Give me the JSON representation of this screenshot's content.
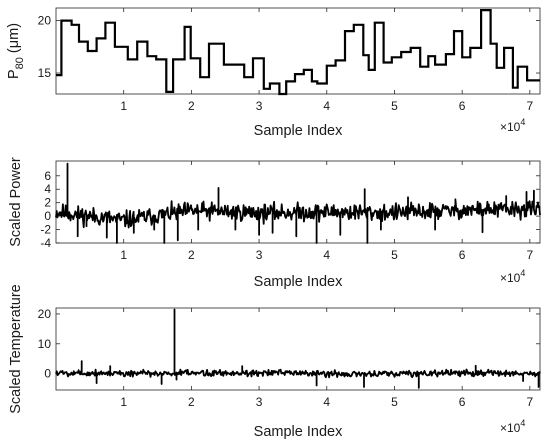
{
  "chart_data": [
    {
      "type": "line",
      "ylabel": "P80 (μm)",
      "ylabel_parts": {
        "main": "P",
        "sub": "80",
        "rest": " (μm)"
      },
      "xlabel": "Sample Index",
      "x_multiplier": "×10",
      "x_multiplier_exp": "4",
      "xlim": [
        0,
        71500
      ],
      "ylim": [
        13,
        21.2
      ],
      "xticks": [
        10000,
        20000,
        30000,
        40000,
        50000,
        60000,
        70000
      ],
      "xtick_labels": [
        "1",
        "2",
        "3",
        "4",
        "5",
        "6",
        "7"
      ],
      "yticks": [
        15,
        20
      ],
      "ytick_labels": [
        "15",
        "20"
      ],
      "step": true,
      "x": [
        0,
        800,
        2300,
        3400,
        4700,
        6000,
        7300,
        8700,
        10600,
        12000,
        13500,
        14800,
        16300,
        17300,
        19000,
        19900,
        21300,
        22600,
        24800,
        26300,
        27800,
        29100,
        30700,
        31600,
        33000,
        34000,
        35300,
        36600,
        37800,
        38600,
        40000,
        41300,
        42700,
        44000,
        45400,
        46200,
        47100,
        48400,
        49600,
        51000,
        52400,
        53800,
        55000,
        56000,
        57600,
        58800,
        60000,
        61200,
        62800,
        64200,
        65100,
        66200,
        67500,
        68200,
        69600,
        71000
      ],
      "y": [
        14.8,
        20.0,
        19.6,
        18.0,
        17.1,
        18.3,
        19.8,
        17.5,
        16.3,
        18.0,
        16.6,
        16.3,
        13.2,
        16.3,
        19.4,
        16.4,
        14.6,
        17.8,
        15.8,
        15.8,
        14.6,
        16.4,
        13.5,
        14.0,
        13.0,
        14.2,
        14.9,
        15.3,
        14.2,
        14.0,
        15.7,
        16.2,
        19.0,
        19.6,
        16.7,
        15.3,
        19.8,
        16.0,
        16.5,
        17.0,
        17.4,
        15.6,
        16.6,
        15.8,
        16.8,
        19.0,
        16.5,
        17.4,
        21.0,
        17.8,
        15.5,
        17.4,
        13.6,
        15.6,
        14.3,
        14.3
      ]
    },
    {
      "type": "line",
      "ylabel": "Scaled Power",
      "xlabel": "Sample Index",
      "x_multiplier": "×10",
      "x_multiplier_exp": "4",
      "xlim": [
        0,
        71500
      ],
      "ylim": [
        -4,
        8.2
      ],
      "xticks": [
        10000,
        20000,
        30000,
        40000,
        50000,
        60000,
        70000
      ],
      "xtick_labels": [
        "1",
        "2",
        "3",
        "4",
        "5",
        "6",
        "7"
      ],
      "yticks": [
        -4,
        -2,
        0,
        2,
        4,
        6
      ],
      "ytick_labels": [
        "-4",
        "-2",
        "0",
        "2",
        "4",
        "6"
      ],
      "signal": {
        "baseline": [
          [
            0,
            0.6
          ],
          [
            10000,
            -0.6
          ],
          [
            20000,
            0.8
          ],
          [
            30000,
            0.5
          ],
          [
            40000,
            0.6
          ],
          [
            50000,
            0.5
          ],
          [
            60000,
            0.9
          ],
          [
            71500,
            1.0
          ]
        ],
        "noise": 0.8,
        "n_points": 700,
        "seed": 11,
        "spikes": [
          {
            "x": 1700,
            "y": 7.8
          },
          {
            "x": 3200,
            "y": -3.0
          },
          {
            "x": 4500,
            "y": -1.5
          },
          {
            "x": 7500,
            "y": -3.2
          },
          {
            "x": 9000,
            "y": -4.0
          },
          {
            "x": 11500,
            "y": -2.5
          },
          {
            "x": 14500,
            "y": -2.0
          },
          {
            "x": 16000,
            "y": -4.0
          },
          {
            "x": 18000,
            "y": -3.6
          },
          {
            "x": 21000,
            "y": -2.0
          },
          {
            "x": 24000,
            "y": 4.2
          },
          {
            "x": 26500,
            "y": -2.0
          },
          {
            "x": 30000,
            "y": -2.8
          },
          {
            "x": 32000,
            "y": -2.5
          },
          {
            "x": 35500,
            "y": -3.0
          },
          {
            "x": 38500,
            "y": -4.0
          },
          {
            "x": 42000,
            "y": -2.8
          },
          {
            "x": 45600,
            "y": 4.0
          },
          {
            "x": 46000,
            "y": -4.0
          },
          {
            "x": 48000,
            "y": -2.0
          },
          {
            "x": 52000,
            "y": 2.8
          },
          {
            "x": 56000,
            "y": -2.0
          },
          {
            "x": 59000,
            "y": 2.5
          },
          {
            "x": 63000,
            "y": -2.4
          },
          {
            "x": 66500,
            "y": 3.0
          },
          {
            "x": 69500,
            "y": 3.6
          },
          {
            "x": 70600,
            "y": 3.8
          }
        ]
      }
    },
    {
      "type": "line",
      "ylabel": "Scaled Temperature",
      "xlabel": "Sample Index",
      "x_multiplier": "×10",
      "x_multiplier_exp": "4",
      "xlim": [
        0,
        71500
      ],
      "ylim": [
        -5.5,
        22
      ],
      "xticks": [
        10000,
        20000,
        30000,
        40000,
        50000,
        60000,
        70000
      ],
      "xtick_labels": [
        "1",
        "2",
        "3",
        "4",
        "5",
        "6",
        "7"
      ],
      "yticks": [
        0,
        10,
        20
      ],
      "ytick_labels": [
        "0",
        "10",
        "20"
      ],
      "signal": {
        "baseline": [
          [
            0,
            0.3
          ],
          [
            15000,
            0.0
          ],
          [
            30000,
            0.3
          ],
          [
            45000,
            -0.2
          ],
          [
            60000,
            0.2
          ],
          [
            71500,
            0.0
          ]
        ],
        "noise": 0.7,
        "n_points": 600,
        "seed": 5,
        "spikes": [
          {
            "x": 3800,
            "y": 4.2
          },
          {
            "x": 6000,
            "y": -3.2
          },
          {
            "x": 8000,
            "y": 2.5
          },
          {
            "x": 15600,
            "y": -3.5
          },
          {
            "x": 17500,
            "y": 21.5
          },
          {
            "x": 17800,
            "y": -2.0
          },
          {
            "x": 27500,
            "y": 2.5
          },
          {
            "x": 38500,
            "y": -4.0
          },
          {
            "x": 45500,
            "y": -4.5
          },
          {
            "x": 53600,
            "y": -4.8
          },
          {
            "x": 62000,
            "y": 2.6
          },
          {
            "x": 69000,
            "y": -2.5
          },
          {
            "x": 71300,
            "y": -4.5
          }
        ]
      }
    }
  ]
}
